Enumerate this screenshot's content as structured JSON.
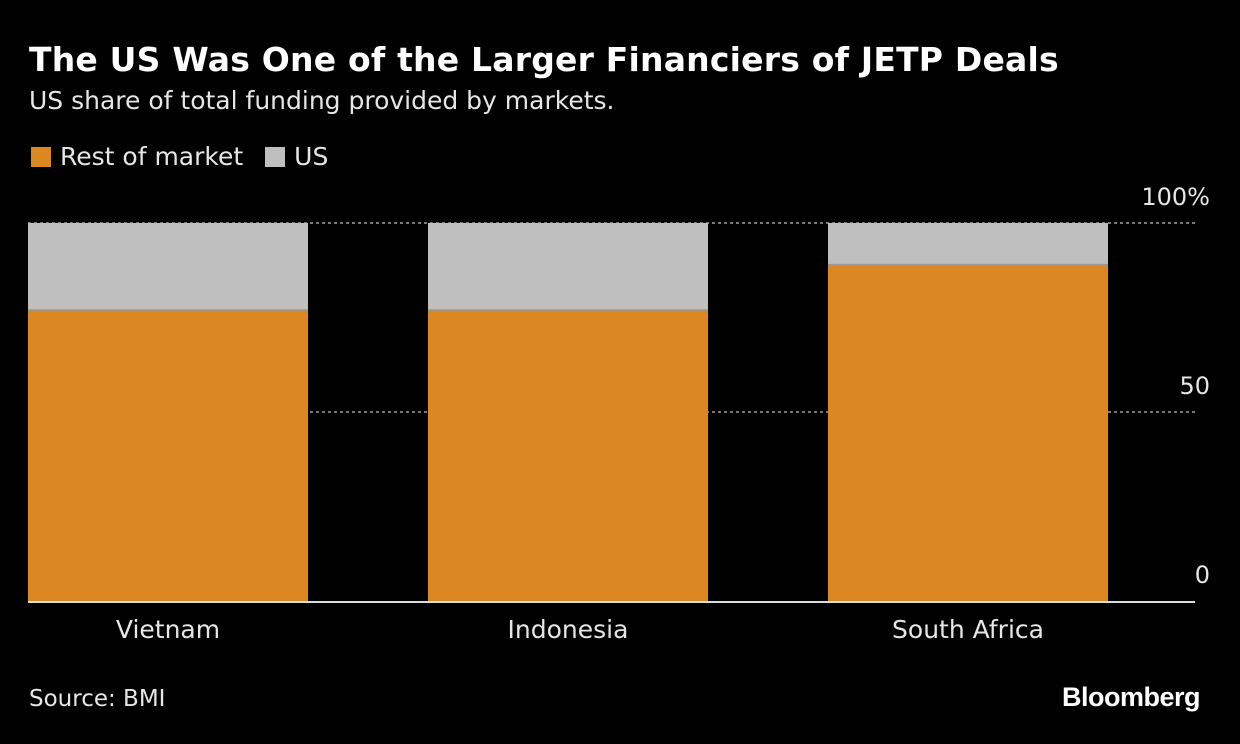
{
  "chart_data": {
    "type": "bar",
    "stacked": true,
    "title": "The US Was One of the Larger Financiers of JETP Deals",
    "subtitle": "US share of total funding provided by markets.",
    "categories": [
      "Vietnam",
      "Indonesia",
      "South Africa"
    ],
    "series": [
      {
        "name": "Rest of market",
        "color": "#db8823",
        "values": [
          77,
          77,
          89
        ]
      },
      {
        "name": "US",
        "color": "#bfbfbf",
        "values": [
          23,
          23,
          11
        ]
      }
    ],
    "ylim": [
      0,
      100
    ],
    "yticks": [
      {
        "value": 0,
        "label": "0"
      },
      {
        "value": 50,
        "label": "50"
      },
      {
        "value": 100,
        "label": "100%"
      }
    ],
    "grid": true,
    "legend": "top-left",
    "source": "Source: BMI",
    "brand": "Bloomberg"
  }
}
